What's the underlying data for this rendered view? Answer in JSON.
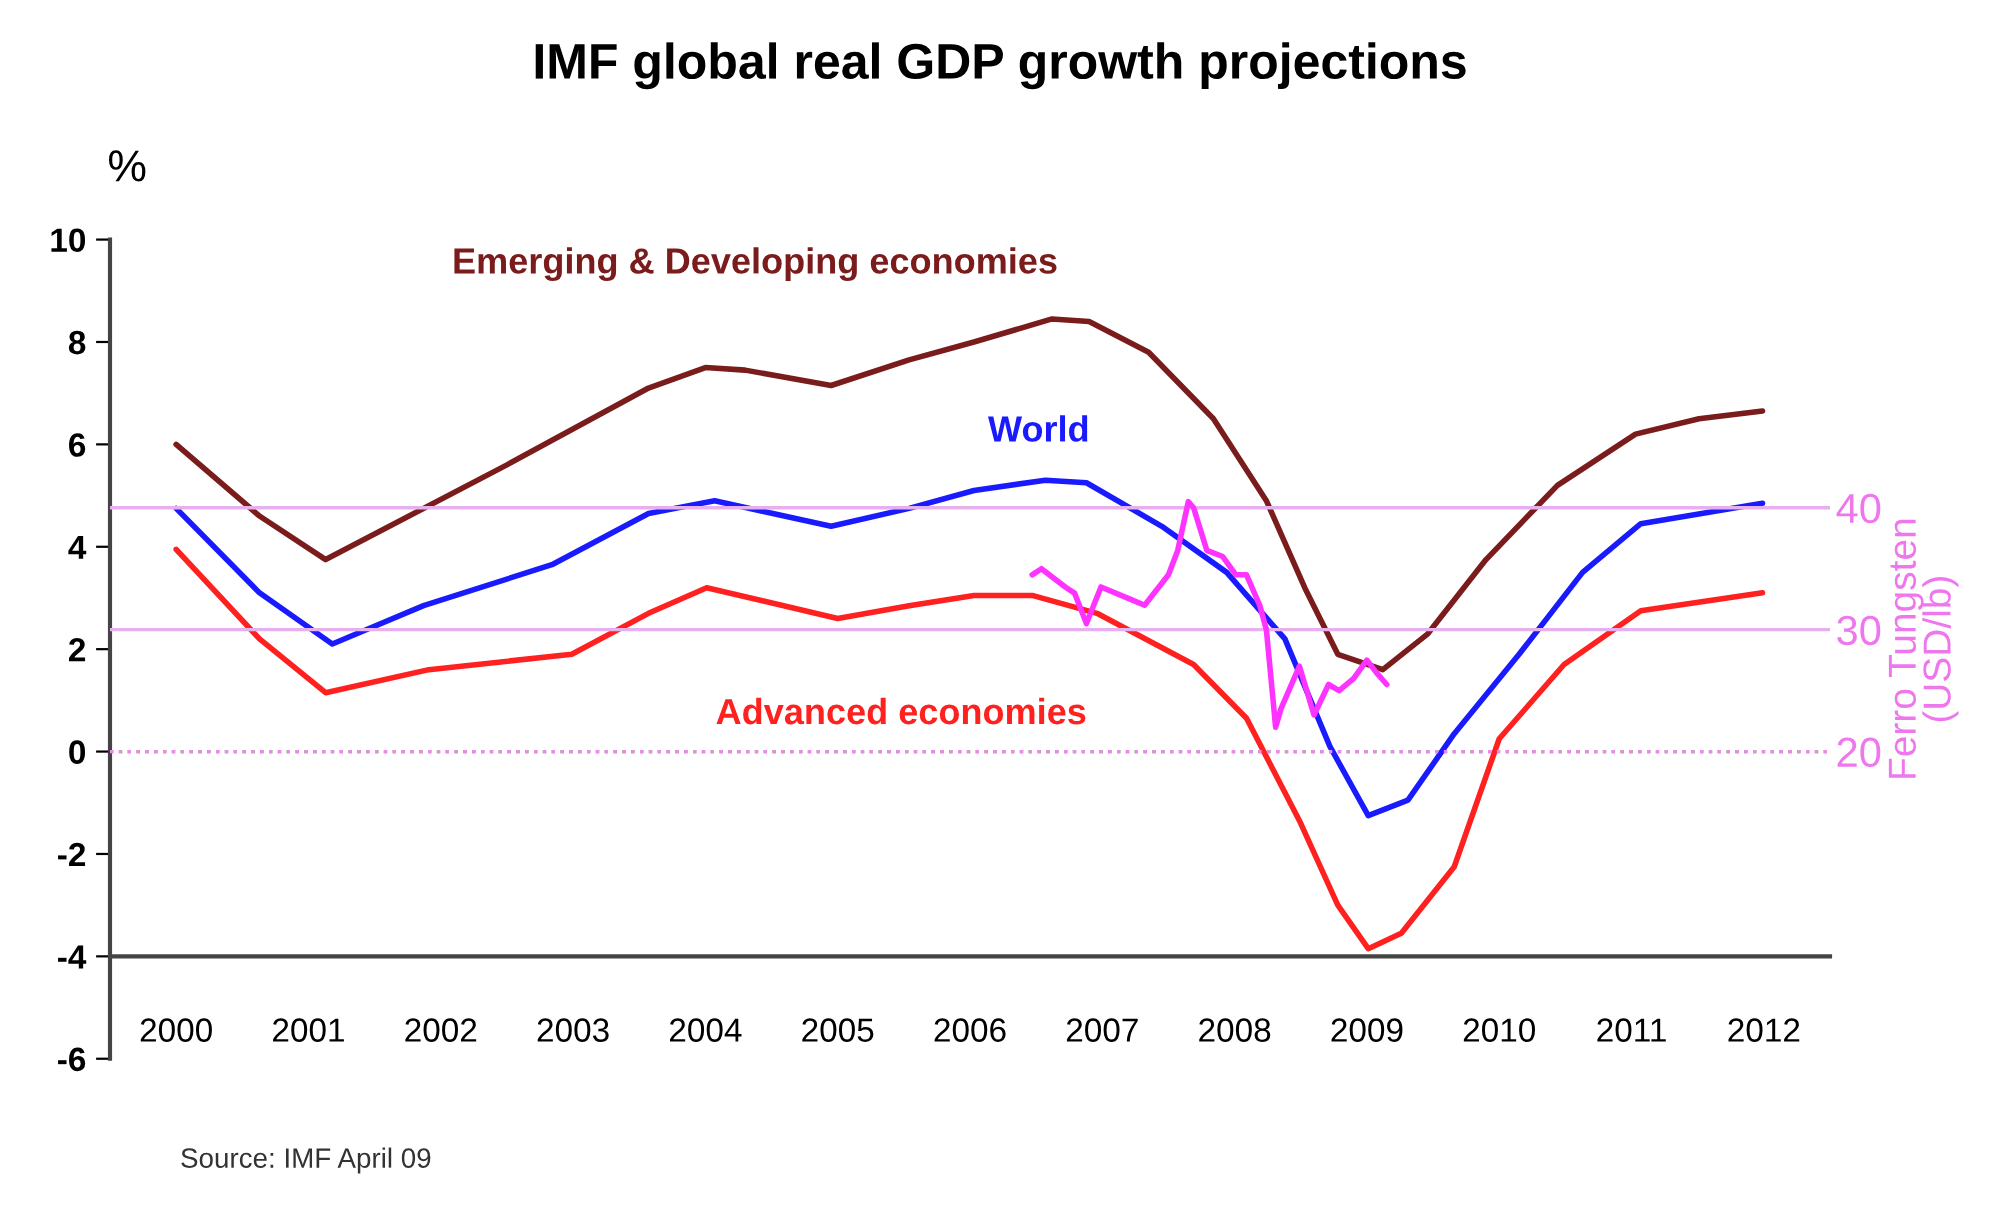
{
  "chart_data": {
    "type": "line",
    "title": "IMF global real GDP growth projections",
    "ylabel": "%",
    "y2label": "Ferro Tungsten\n(USD/lb)",
    "xlim": [
      1999.5,
      2012.5
    ],
    "xticks": [
      {
        "value": 2000,
        "label": "2000"
      },
      {
        "value": 2001,
        "label": "2001"
      },
      {
        "value": 2002,
        "label": "2002"
      },
      {
        "value": 2003,
        "label": "2003"
      },
      {
        "value": 2004,
        "label": "2004"
      },
      {
        "value": 2005,
        "label": "2005"
      },
      {
        "value": 2006,
        "label": "2006"
      },
      {
        "value": 2007,
        "label": "2007"
      },
      {
        "value": 2008,
        "label": "2008"
      },
      {
        "value": 2009,
        "label": "2009"
      },
      {
        "value": 2010,
        "label": "2010"
      },
      {
        "value": 2011,
        "label": "2011"
      },
      {
        "value": 2012,
        "label": "2012"
      }
    ],
    "ylim": [
      -6,
      10
    ],
    "yticks": [
      -6,
      -4,
      -2,
      0,
      2,
      4,
      6,
      8,
      10
    ],
    "y2lim": [
      -5.2,
      62
    ],
    "y2ticks": [
      20,
      30,
      40
    ],
    "grid": false,
    "legend": false,
    "marker": "none",
    "line_style": "solid",
    "series": [
      {
        "name": "Emerging & Developing economies",
        "color": "#7b1c1c",
        "x": [
          2000,
          2000.63,
          2001.13,
          2002.5,
          2003.57,
          2004.0,
          2004.3,
          2004.95,
          2005.54,
          2006.03,
          2006.62,
          2006.9,
          2007.35,
          2007.84,
          2008.24,
          2008.53,
          2008.78,
          2009.12,
          2009.46,
          2009.9,
          2010.44,
          2011.03,
          2011.51,
          2011.99
        ],
        "values": [
          6.0,
          4.6,
          3.75,
          5.6,
          7.1,
          7.5,
          7.45,
          7.15,
          7.65,
          8.0,
          8.45,
          8.4,
          7.8,
          6.5,
          4.9,
          3.2,
          1.9,
          1.6,
          2.3,
          3.75,
          5.2,
          6.2,
          6.5,
          6.65
        ]
      },
      {
        "name": "World",
        "color": "#1a1aff",
        "x": [
          2000,
          2000.63,
          2001.18,
          2001.87,
          2002.84,
          2003.57,
          2004.07,
          2004.95,
          2005.54,
          2006.03,
          2006.57,
          2006.88,
          2007.45,
          2007.94,
          2008.38,
          2008.72,
          2009.01,
          2009.31,
          2009.66,
          2010.15,
          2010.63,
          2011.07,
          2011.99
        ],
        "values": [
          4.75,
          3.1,
          2.1,
          2.85,
          3.65,
          4.65,
          4.9,
          4.4,
          4.75,
          5.1,
          5.3,
          5.25,
          4.4,
          3.5,
          2.2,
          0.1,
          -1.25,
          -0.95,
          0.35,
          1.9,
          3.5,
          4.45,
          4.85
        ]
      },
      {
        "name": "Advanced economies",
        "color": "#ff2020",
        "x": [
          2000,
          2000.63,
          2001.13,
          2001.91,
          2002.99,
          2003.57,
          2004.01,
          2005.0,
          2005.54,
          2006.03,
          2006.47,
          2006.96,
          2007.69,
          2008.09,
          2008.49,
          2008.78,
          2009.01,
          2009.26,
          2009.66,
          2010.0,
          2010.49,
          2011.07,
          2011.99
        ],
        "values": [
          3.95,
          2.2,
          1.15,
          1.6,
          1.9,
          2.7,
          3.2,
          2.6,
          2.85,
          3.05,
          3.05,
          2.7,
          1.7,
          0.65,
          -1.35,
          -3.0,
          -3.85,
          -3.55,
          -2.25,
          0.25,
          1.7,
          2.75,
          3.1
        ]
      },
      {
        "axis": "y2",
        "color": "#ff33ff",
        "x": [
          2006.47,
          2006.54,
          2006.72,
          2006.79,
          2006.88,
          2006.99,
          2007.21,
          2007.32,
          2007.5,
          2007.57,
          2007.65,
          2007.69,
          2007.79,
          2007.91,
          2008.01,
          2008.09,
          2008.19,
          2008.24,
          2008.31,
          2008.35,
          2008.49,
          2008.6,
          2008.71,
          2008.79,
          2008.9,
          2009.0,
          2009.07,
          2009.15
        ],
        "values": [
          34.5,
          35,
          33.5,
          33,
          30.5,
          33.5,
          32.5,
          32,
          34.5,
          36.5,
          40.5,
          40,
          36.5,
          36,
          34.5,
          34.5,
          32,
          30,
          22,
          23.5,
          27,
          23,
          25.5,
          25,
          26,
          27.5,
          26.5,
          25.5
        ]
      }
    ],
    "ref_lines": [
      {
        "axis": "y",
        "value": 0,
        "color": "#33aa33",
        "line_style": "dotted"
      },
      {
        "axis": "y2",
        "value": 20,
        "color": "#ee88ee",
        "line_style": "dotted"
      },
      {
        "axis": "y2",
        "value": 30,
        "color": "#e6b0ee",
        "line_style": "solid"
      },
      {
        "axis": "y2",
        "value": 40,
        "color": "#e6b0ee",
        "line_style": "solid"
      }
    ],
    "annotations": [
      "Source: IMF April 09"
    ]
  }
}
